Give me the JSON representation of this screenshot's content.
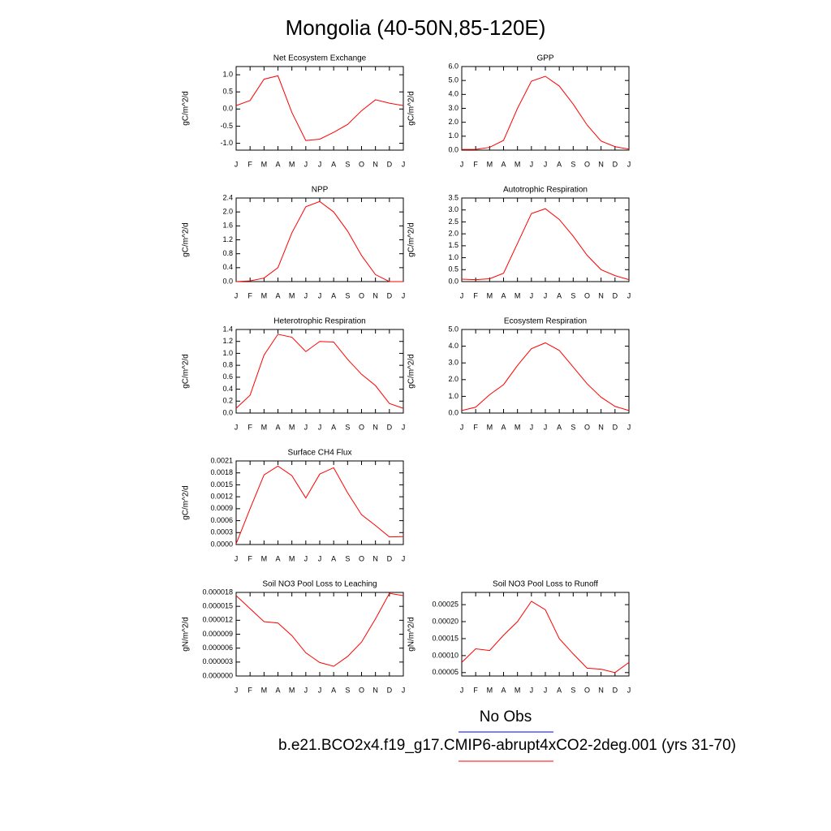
{
  "title": "Mongolia (40-50N,85-120E)",
  "legend": [
    {
      "name": "No Obs",
      "color": "#0000ff"
    },
    {
      "name": "b.e21.BCO2x4.f19_g17.CMIP6-abrupt4xCO2-2deg.001 (yrs 31-70)",
      "color": "#ff0000"
    }
  ],
  "chart_data": [
    {
      "type": "line",
      "title": "Net Ecosystem Exchange",
      "ylabel": "gC/m^2/d",
      "color": "#ff0000",
      "categories": [
        "J",
        "F",
        "M",
        "A",
        "M",
        "J",
        "J",
        "A",
        "S",
        "O",
        "N",
        "D",
        "J"
      ],
      "values": [
        0.1,
        0.25,
        0.87,
        0.97,
        -0.1,
        -0.92,
        -0.88,
        -0.68,
        -0.45,
        -0.05,
        0.27,
        0.17,
        0.1
      ],
      "ylim": [
        -1.2,
        1.24
      ],
      "yticks": [
        {
          "value": -1,
          "label": "-1.0"
        },
        -0.5,
        {
          "value": 0,
          "label": "0.0"
        },
        0.5,
        {
          "value": 1,
          "label": "1.0"
        }
      ]
    },
    {
      "type": "line",
      "title": "GPP",
      "ylabel": "gC/m^2/d",
      "color": "#ff0000",
      "categories": [
        "J",
        "F",
        "M",
        "A",
        "M",
        "J",
        "J",
        "A",
        "S",
        "O",
        "N",
        "D",
        "J"
      ],
      "values": [
        0.05,
        0.05,
        0.2,
        0.7,
        3.0,
        4.95,
        5.3,
        4.6,
        3.3,
        1.8,
        0.65,
        0.25,
        0.07
      ],
      "ylim": [
        0,
        6
      ],
      "yticks": [
        {
          "value": 0,
          "label": "0.0"
        },
        {
          "value": 1,
          "label": "1.0"
        },
        {
          "value": 2,
          "label": "2.0"
        },
        {
          "value": 3,
          "label": "3.0"
        },
        {
          "value": 4,
          "label": "4.0"
        },
        {
          "value": 5,
          "label": "5.0"
        },
        {
          "value": 6,
          "label": "6.0"
        }
      ]
    },
    {
      "type": "line",
      "title": "NPP",
      "ylabel": "gC/m^2/d",
      "color": "#ff0000",
      "categories": [
        "J",
        "F",
        "M",
        "A",
        "M",
        "J",
        "J",
        "A",
        "S",
        "O",
        "N",
        "D",
        "J"
      ],
      "values": [
        0.0,
        0.02,
        0.1,
        0.4,
        1.4,
        2.15,
        2.3,
        2.0,
        1.45,
        0.75,
        0.2,
        0.0,
        0.0
      ],
      "ylim": [
        0,
        2.4
      ],
      "yticks": [
        {
          "value": 0,
          "label": "0.0"
        },
        0.4,
        0.8,
        1.2,
        1.6,
        {
          "value": 2,
          "label": "2.0"
        },
        2.4
      ]
    },
    {
      "type": "line",
      "title": "Autotrophic Respiration",
      "ylabel": "gC/m^2/d",
      "color": "#ff0000",
      "categories": [
        "J",
        "F",
        "M",
        "A",
        "M",
        "J",
        "J",
        "A",
        "S",
        "O",
        "N",
        "D",
        "J"
      ],
      "values": [
        0.1,
        0.08,
        0.12,
        0.35,
        1.6,
        2.85,
        3.05,
        2.6,
        1.9,
        1.1,
        0.5,
        0.25,
        0.08
      ],
      "ylim": [
        0,
        3.5
      ],
      "yticks": [
        {
          "value": 0,
          "label": "0.0"
        },
        0.5,
        {
          "value": 1,
          "label": "1.0"
        },
        1.5,
        {
          "value": 2,
          "label": "2.0"
        },
        2.5,
        {
          "value": 3,
          "label": "3.0"
        },
        3.5
      ]
    },
    {
      "type": "line",
      "title": "Heterotrophic Respiration",
      "ylabel": "gC/m^2/d",
      "color": "#ff0000",
      "categories": [
        "J",
        "F",
        "M",
        "A",
        "M",
        "J",
        "J",
        "A",
        "S",
        "O",
        "N",
        "D",
        "J"
      ],
      "values": [
        0.08,
        0.3,
        0.97,
        1.32,
        1.27,
        1.03,
        1.2,
        1.19,
        0.9,
        0.65,
        0.46,
        0.16,
        0.08
      ],
      "ylim": [
        0,
        1.4
      ],
      "yticks": [
        {
          "value": 0,
          "label": "0.0"
        },
        0.2,
        0.4,
        0.6,
        0.8,
        {
          "value": 1,
          "label": "1.0"
        },
        1.2,
        1.4
      ]
    },
    {
      "type": "line",
      "title": "Ecosystem Respiration",
      "ylabel": "gC/m^2/d",
      "color": "#ff0000",
      "categories": [
        "J",
        "F",
        "M",
        "A",
        "M",
        "J",
        "J",
        "A",
        "S",
        "O",
        "N",
        "D",
        "J"
      ],
      "values": [
        0.15,
        0.35,
        1.1,
        1.7,
        2.85,
        3.85,
        4.2,
        3.75,
        2.75,
        1.75,
        0.95,
        0.4,
        0.15
      ],
      "ylim": [
        0,
        5
      ],
      "yticks": [
        {
          "value": 0,
          "label": "0.0"
        },
        {
          "value": 1,
          "label": "1.0"
        },
        {
          "value": 2,
          "label": "2.0"
        },
        {
          "value": 3,
          "label": "3.0"
        },
        {
          "value": 4,
          "label": "4.0"
        },
        {
          "value": 5,
          "label": "5.0"
        }
      ]
    },
    {
      "type": "line",
      "title": "Surface CH4 Flux",
      "ylabel": "gC/m^2/d",
      "color": "#ff0000",
      "categories": [
        "J",
        "F",
        "M",
        "A",
        "M",
        "J",
        "J",
        "A",
        "S",
        "O",
        "N",
        "D",
        "J"
      ],
      "values": [
        2e-05,
        0.0009,
        0.00175,
        0.00197,
        0.00173,
        0.00117,
        0.00177,
        0.00193,
        0.0013,
        0.00075,
        0.00048,
        0.00019,
        0.0002
      ],
      "ylim": [
        0,
        0.0021
      ],
      "yticks": [
        {
          "value": 0,
          "label": "0.0000"
        },
        0.0003,
        0.0006,
        0.0009,
        0.0012,
        0.0015,
        0.0018,
        0.0021
      ]
    },
    {
      "type": "line",
      "title": "Soil NO3 Pool Loss to Leaching",
      "ylabel": "gN/m^2/d",
      "color": "#ff0000",
      "categories": [
        "J",
        "F",
        "M",
        "A",
        "M",
        "J",
        "J",
        "A",
        "S",
        "O",
        "N",
        "D",
        "J"
      ],
      "values": [
        1.73e-05,
        1.45e-05,
        1.17e-05,
        1.14e-05,
        8.7e-06,
        5e-06,
        2.9e-06,
        2.1e-06,
        4.2e-06,
        7.3e-06,
        1.23e-05,
        1.78e-05,
        1.73e-05
      ],
      "ylim": [
        0,
        1.8e-05
      ],
      "yticks": [
        {
          "value": 0,
          "label": "0.000000"
        },
        3e-06,
        6e-06,
        9e-06,
        1.2e-05,
        1.5e-05,
        1.8e-05
      ]
    },
    {
      "type": "line",
      "title": "Soil NO3 Pool Loss to Runoff",
      "ylabel": "gN/m^2/d",
      "color": "#ff0000",
      "categories": [
        "J",
        "F",
        "M",
        "A",
        "M",
        "J",
        "J",
        "A",
        "S",
        "O",
        "N",
        "D",
        "J"
      ],
      "values": [
        8e-05,
        0.00012,
        0.000115,
        0.00016,
        0.0002,
        0.00026,
        0.000235,
        0.00015,
        0.000105,
        6.3e-05,
        6e-05,
        5e-05,
        8e-05
      ],
      "ylim": [
        4e-05,
        0.000286
      ],
      "yticks": [
        5e-05,
        {
          "value": 0.0001,
          "label": "0.00010"
        },
        0.00015,
        {
          "value": 0.0002,
          "label": "0.00020"
        },
        0.00025
      ]
    }
  ]
}
